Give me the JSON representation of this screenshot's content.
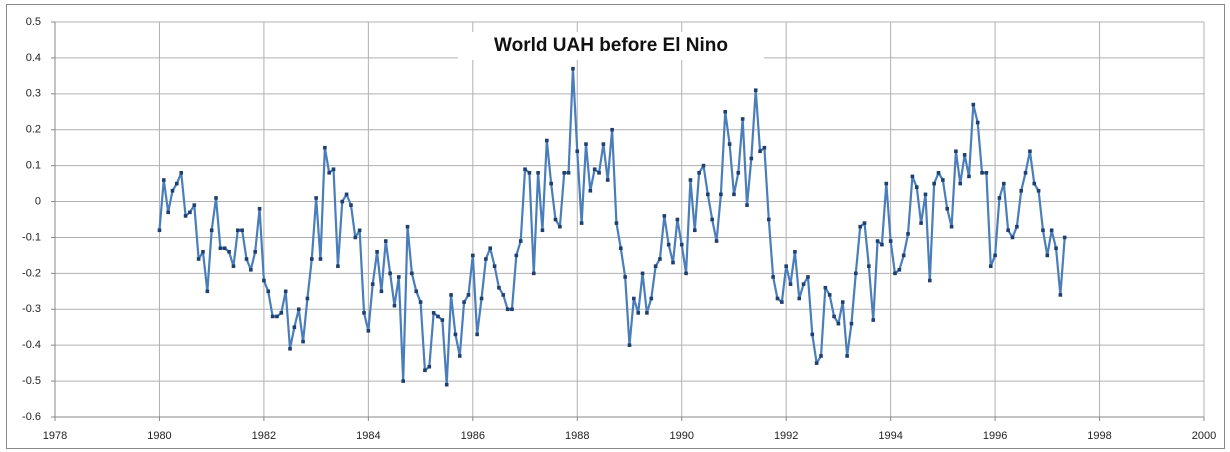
{
  "chart_data": {
    "type": "line",
    "title": "World UAH before El Nino",
    "x": [
      1980,
      1980.083,
      1980.167,
      1980.25,
      1980.333,
      1980.417,
      1980.5,
      1980.583,
      1980.667,
      1980.75,
      1980.833,
      1980.917,
      1981,
      1981.083,
      1981.167,
      1981.25,
      1981.333,
      1981.417,
      1981.5,
      1981.583,
      1981.667,
      1981.75,
      1981.833,
      1981.917,
      1982,
      1982.083,
      1982.167,
      1982.25,
      1982.333,
      1982.417,
      1982.5,
      1982.583,
      1982.667,
      1982.75,
      1982.833,
      1982.917,
      1983,
      1983.083,
      1983.167,
      1983.25,
      1983.333,
      1983.417,
      1983.5,
      1983.583,
      1983.667,
      1983.75,
      1983.833,
      1983.917,
      1984,
      1984.083,
      1984.167,
      1984.25,
      1984.333,
      1984.417,
      1984.5,
      1984.583,
      1984.667,
      1984.75,
      1984.833,
      1984.917,
      1985,
      1985.083,
      1985.167,
      1985.25,
      1985.333,
      1985.417,
      1985.5,
      1985.583,
      1985.667,
      1985.75,
      1985.833,
      1985.917,
      1986,
      1986.083,
      1986.167,
      1986.25,
      1986.333,
      1986.417,
      1986.5,
      1986.583,
      1986.667,
      1986.75,
      1986.833,
      1986.917,
      1987,
      1987.083,
      1987.167,
      1987.25,
      1987.333,
      1987.417,
      1987.5,
      1987.583,
      1987.667,
      1987.75,
      1987.833,
      1987.917,
      1988,
      1988.083,
      1988.167,
      1988.25,
      1988.333,
      1988.417,
      1988.5,
      1988.583,
      1988.667,
      1988.75,
      1988.833,
      1988.917,
      1989,
      1989.083,
      1989.167,
      1989.25,
      1989.333,
      1989.417,
      1989.5,
      1989.583,
      1989.667,
      1989.75,
      1989.833,
      1989.917,
      1990,
      1990.083,
      1990.167,
      1990.25,
      1990.333,
      1990.417,
      1990.5,
      1990.583,
      1990.667,
      1990.75,
      1990.833,
      1990.917,
      1991,
      1991.083,
      1991.167,
      1991.25,
      1991.333,
      1991.417,
      1991.5,
      1991.583,
      1991.667,
      1991.75,
      1991.833,
      1991.917,
      1992,
      1992.083,
      1992.167,
      1992.25,
      1992.333,
      1992.417,
      1992.5,
      1992.583,
      1992.667,
      1992.75,
      1992.833,
      1992.917,
      1993,
      1993.083,
      1993.167,
      1993.25,
      1993.333,
      1993.417,
      1993.5,
      1993.583,
      1993.667,
      1993.75,
      1993.833,
      1993.917,
      1994,
      1994.083,
      1994.167,
      1994.25,
      1994.333,
      1994.417,
      1994.5,
      1994.583,
      1994.667,
      1994.75,
      1994.833,
      1994.917,
      1995,
      1995.083,
      1995.167,
      1995.25,
      1995.333,
      1995.417,
      1995.5,
      1995.583,
      1995.667,
      1995.75,
      1995.833,
      1995.917,
      1996,
      1996.083,
      1996.167,
      1996.25,
      1996.333,
      1996.417,
      1996.5,
      1996.583,
      1996.667,
      1996.75,
      1996.833,
      1996.917,
      1997,
      1997.083,
      1997.167,
      1997.25,
      1997.333
    ],
    "series": [
      {
        "color": "#4a7ebb",
        "values": [
          -0.08,
          0.06,
          -0.03,
          0.03,
          0.05,
          0.08,
          -0.04,
          -0.03,
          -0.01,
          -0.16,
          -0.14,
          -0.25,
          -0.08,
          0.01,
          -0.13,
          -0.13,
          -0.14,
          -0.18,
          -0.08,
          -0.08,
          -0.16,
          -0.19,
          -0.14,
          -0.02,
          -0.22,
          -0.25,
          -0.32,
          -0.32,
          -0.31,
          -0.25,
          -0.41,
          -0.35,
          -0.3,
          -0.39,
          -0.27,
          -0.16,
          0.01,
          -0.16,
          0.15,
          0.08,
          0.09,
          -0.18,
          0,
          0.02,
          -0.01,
          -0.1,
          -0.08,
          -0.31,
          -0.36,
          -0.23,
          -0.14,
          -0.25,
          -0.11,
          -0.2,
          -0.29,
          -0.21,
          -0.5,
          -0.07,
          -0.2,
          -0.25,
          -0.28,
          -0.47,
          -0.46,
          -0.31,
          -0.32,
          -0.33,
          -0.51,
          -0.26,
          -0.37,
          -0.43,
          -0.28,
          -0.26,
          -0.15,
          -0.37,
          -0.27,
          -0.16,
          -0.13,
          -0.18,
          -0.24,
          -0.26,
          -0.3,
          -0.3,
          -0.15,
          -0.11,
          0.09,
          0.08,
          -0.2,
          0.08,
          -0.08,
          0.17,
          0.05,
          -0.05,
          -0.07,
          0.08,
          0.08,
          0.37,
          0.14,
          -0.06,
          0.16,
          0.03,
          0.09,
          0.08,
          0.16,
          0.06,
          0.2,
          -0.06,
          -0.13,
          -0.21,
          -0.4,
          -0.27,
          -0.31,
          -0.2,
          -0.31,
          -0.27,
          -0.18,
          -0.16,
          -0.04,
          -0.12,
          -0.17,
          -0.05,
          -0.12,
          -0.2,
          0.06,
          -0.08,
          0.08,
          0.1,
          0.02,
          -0.05,
          -0.11,
          0.02,
          0.25,
          0.16,
          0.02,
          0.08,
          0.23,
          -0.01,
          0.12,
          0.31,
          0.14,
          0.15,
          -0.05,
          -0.21,
          -0.27,
          -0.28,
          -0.18,
          -0.23,
          -0.14,
          -0.27,
          -0.23,
          -0.21,
          -0.37,
          -0.45,
          -0.43,
          -0.24,
          -0.26,
          -0.32,
          -0.34,
          -0.28,
          -0.43,
          -0.34,
          -0.2,
          -0.07,
          -0.06,
          -0.18,
          -0.33,
          -0.11,
          -0.12,
          0.05,
          -0.11,
          -0.2,
          -0.19,
          -0.15,
          -0.09,
          0.07,
          0.04,
          -0.06,
          0.02,
          -0.22,
          0.05,
          0.08,
          0.06,
          -0.02,
          -0.07,
          0.14,
          0.05,
          0.13,
          0.07,
          0.27,
          0.22,
          0.08,
          0.08,
          -0.18,
          -0.15,
          0.01,
          0.05,
          -0.08,
          -0.1,
          -0.07,
          0.03,
          0.08,
          0.14,
          0.05,
          0.03,
          -0.08,
          -0.15,
          -0.08,
          -0.13,
          -0.26,
          -0.1
        ]
      }
    ],
    "xlim": [
      1978,
      2000
    ],
    "xticks": [
      1978,
      1980,
      1982,
      1984,
      1986,
      1988,
      1990,
      1992,
      1994,
      1996,
      1998,
      2000
    ],
    "ylim": [
      -0.6,
      0.5
    ],
    "yticks": [
      -0.6,
      -0.5,
      -0.4,
      -0.3,
      -0.2,
      -0.1,
      0,
      0.1,
      0.2,
      0.3,
      0.4,
      0.5
    ],
    "grid": true,
    "marker_color": "#1f3f6e"
  }
}
